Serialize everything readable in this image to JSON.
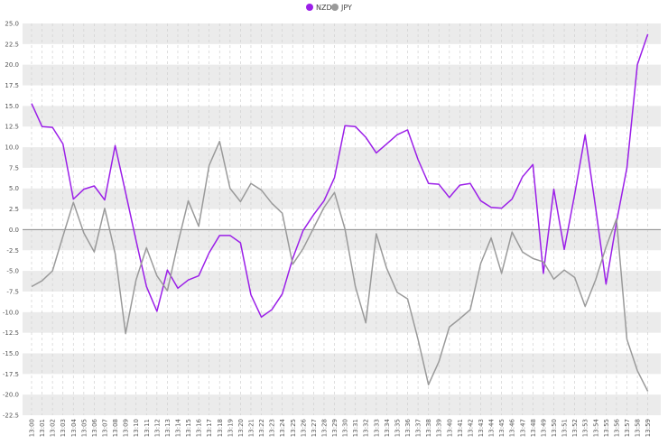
{
  "chart_data": {
    "type": "line",
    "title": "",
    "xlabel": "",
    "ylabel": "",
    "legend_position": "top-center",
    "grid": true,
    "ylim": [
      -22.5,
      25.0
    ],
    "yticks": [
      25.0,
      22.5,
      20.0,
      17.5,
      15.0,
      12.5,
      10.0,
      7.5,
      5.0,
      2.5,
      0.0,
      -2.5,
      -5.0,
      -7.5,
      -10.0,
      -12.5,
      -15.0,
      -17.5,
      -20.0,
      -22.5
    ],
    "ytick_labels": [
      "25.0",
      "22.5",
      "20.0",
      "17.5",
      "15.0",
      "12.5",
      "10.0",
      "7.5",
      "5.0",
      "2.5",
      "0.0",
      "-2.5",
      "-5.0",
      "-7.5",
      "-10.0",
      "-12.5",
      "-15.0",
      "-17.5",
      "-20.0",
      "-22.5"
    ],
    "categories": [
      "13:00",
      "13:01",
      "13:02",
      "13:03",
      "13:04",
      "13:05",
      "13:06",
      "13:07",
      "13:08",
      "13:09",
      "13:10",
      "13:11",
      "13:12",
      "13:13",
      "13:14",
      "13:15",
      "13:16",
      "13:17",
      "13:18",
      "13:19",
      "13:20",
      "13:21",
      "13:22",
      "13:23",
      "13:24",
      "13:25",
      "13:26",
      "13:27",
      "13:28",
      "13:29",
      "13:30",
      "13:31",
      "13:32",
      "13:33",
      "13:34",
      "13:35",
      "13:36",
      "13:37",
      "13:38",
      "13:39",
      "13:40",
      "13:41",
      "13:42",
      "13:43",
      "13:44",
      "13:45",
      "13:46",
      "13:47",
      "13:48",
      "13:49",
      "13:50",
      "13:51",
      "13:52",
      "13:53",
      "13:54",
      "13:55",
      "13:56",
      "13:57",
      "13:58",
      "13:59"
    ],
    "series": [
      {
        "name": "NZD",
        "color": "#9b1fe8",
        "values": [
          15.3,
          12.5,
          12.4,
          10.4,
          3.7,
          4.9,
          5.3,
          3.6,
          10.2,
          4.5,
          -1.3,
          -6.9,
          -9.9,
          -4.9,
          -7.1,
          -6.1,
          -5.6,
          -2.8,
          -0.7,
          -0.7,
          -1.6,
          -7.9,
          -10.6,
          -9.7,
          -7.8,
          -3.5,
          -0.1,
          1.8,
          3.5,
          6.3,
          12.6,
          12.5,
          11.2,
          9.3,
          10.4,
          11.5,
          12.1,
          8.5,
          5.6,
          5.5,
          3.9,
          5.4,
          5.6,
          3.5,
          2.7,
          2.6,
          3.7,
          6.4,
          7.9,
          -5.3,
          4.9,
          -2.4,
          4.3,
          11.5,
          2.7,
          -6.6,
          0.9,
          7.5,
          20.0,
          23.7
        ]
      },
      {
        "name": "JPY",
        "color": "#9a9a9a",
        "values": [
          -6.9,
          -6.2,
          -5.0,
          -0.8,
          3.3,
          -0.4,
          -2.7,
          2.6,
          -2.9,
          -12.6,
          -6.1,
          -2.2,
          -5.6,
          -7.4,
          -1.7,
          3.5,
          0.4,
          7.8,
          10.7,
          5.0,
          3.4,
          5.6,
          4.8,
          3.2,
          2.0,
          -4.2,
          -2.3,
          0.2,
          2.7,
          4.5,
          0.1,
          -6.9,
          -11.3,
          -0.5,
          -4.7,
          -7.6,
          -8.4,
          -13.3,
          -18.8,
          -16.0,
          -11.8,
          -10.8,
          -9.7,
          -4.1,
          -1.0,
          -5.3,
          -0.3,
          -2.7,
          -3.5,
          -3.9,
          -6.0,
          -4.9,
          -5.8,
          -9.3,
          -6.1,
          -2.1,
          1.3,
          -13.3,
          -17.1,
          -19.6
        ]
      }
    ]
  }
}
